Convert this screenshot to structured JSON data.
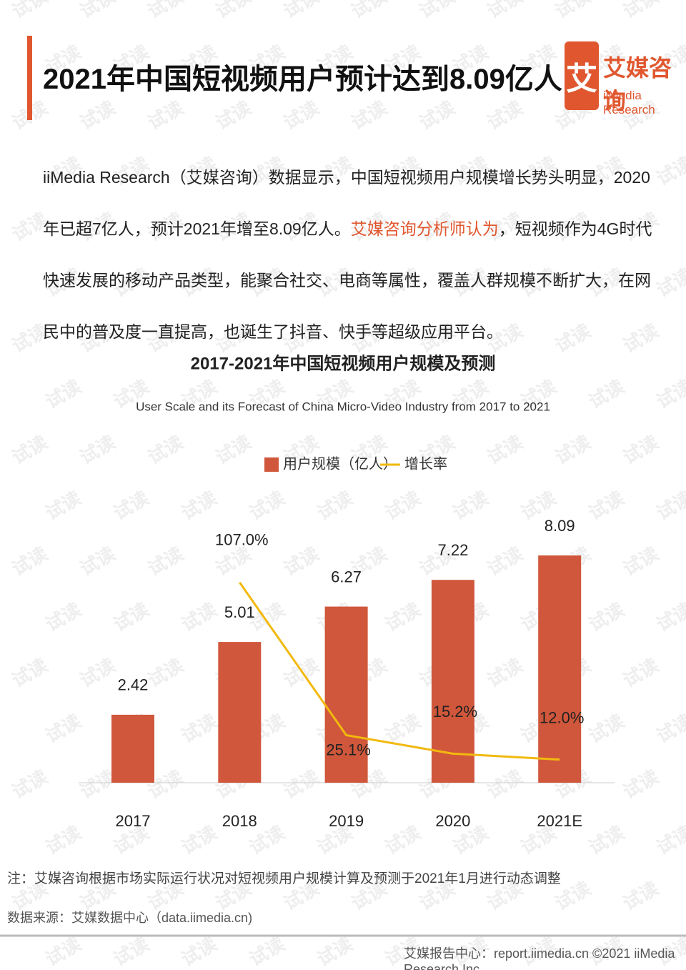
{
  "header": {
    "title": "2021年中国短视频用户预计达到8.09亿人",
    "logo_mark": "艾",
    "logo_name": "艾媒咨询",
    "logo_en": "iiMedia Research"
  },
  "intro": {
    "text_before": "iiMedia Research（艾媒咨询）数据显示，中国短视频用户规模增长势头明显，2020年已超7亿人，预计2021年增至8.09亿人。",
    "highlight": "艾媒咨询分析师认为",
    "text_after": "，短视频作为4G时代快速发展的移动产品类型，能聚合社交、电商等属性，覆盖人群规模不断扩大，在网民中的普及度一直提高，也诞生了抖音、快手等超级应用平台。"
  },
  "chart_data": {
    "type": "bar-line",
    "title": "2017-2021年中国短视频用户规模及预测",
    "subtitle": "User Scale and its Forecast of China Micro-Video Industry from 2017 to 2021",
    "categories": [
      "2017",
      "2018",
      "2019",
      "2020",
      "2021E"
    ],
    "series": [
      {
        "name": "用户规模（亿人）",
        "type": "bar",
        "color": "#d0573b",
        "values": [
          2.42,
          5.01,
          6.27,
          7.22,
          8.09
        ]
      },
      {
        "name": "增长率",
        "type": "line",
        "color": "#f2b90f",
        "values": [
          null,
          107.0,
          25.1,
          15.2,
          12.0
        ],
        "value_labels": [
          null,
          "107.0%",
          "25.1%",
          "15.2%",
          "12.0%"
        ]
      }
    ],
    "legend": "top"
  },
  "note": "注：艾媒咨询根据市场实际运行状况对短视频用户规模计算及预测于2021年1月进行动态调整",
  "source": "数据来源：艾媒数据中心（data.iimedia.cn)",
  "footer": "艾媒报告中心：report.iimedia.cn  ©2021  iiMedia Research  Inc",
  "watermark": "试读"
}
